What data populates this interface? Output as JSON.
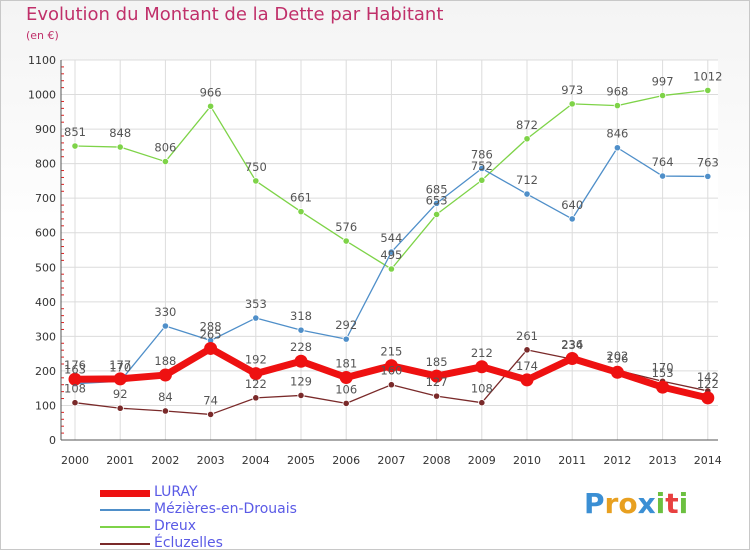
{
  "title": "Evolution du Montant de la Dette par Habitant",
  "unit_label": "(en €)",
  "logo": {
    "letters": [
      "P",
      "r",
      "o",
      "x",
      "i",
      "t",
      "i"
    ],
    "colors": [
      "#3b8fd4",
      "#e8a020",
      "#e8a020",
      "#3b8fd4",
      "#6cc040",
      "#e84040",
      "#6cc040"
    ]
  },
  "chart_data": {
    "type": "line",
    "title": "Evolution du Montant de la Dette par Habitant",
    "ylabel": "(en €)",
    "xlabel": "",
    "ylim": [
      0,
      1100
    ],
    "yticks": [
      0,
      100,
      200,
      300,
      400,
      500,
      600,
      700,
      800,
      900,
      1000,
      1100
    ],
    "categories": [
      "2000",
      "2001",
      "2002",
      "2003",
      "2004",
      "2005",
      "2006",
      "2007",
      "2008",
      "2009",
      "2010",
      "2011",
      "2012",
      "2013",
      "2014"
    ],
    "grid": true,
    "legend_position": "bottom-left",
    "series": [
      {
        "name": "LURAY",
        "color": "#ee1111",
        "values": [
          176,
          177,
          188,
          265,
          192,
          228,
          181,
          215,
          185,
          212,
          174,
          236,
          196,
          153,
          122
        ]
      },
      {
        "name": "Mézières-en-Drouais",
        "color": "#4f8fc9",
        "values": [
          163,
          170,
          330,
          288,
          353,
          318,
          292,
          544,
          685,
          786,
          712,
          640,
          846,
          764,
          763
        ]
      },
      {
        "name": "Dreux",
        "color": "#7ed348",
        "values": [
          851,
          848,
          806,
          966,
          750,
          661,
          576,
          495,
          653,
          752,
          872,
          973,
          968,
          997,
          1012
        ]
      },
      {
        "name": "Écluzelles",
        "color": "#7a2a2a",
        "values": [
          108,
          92,
          84,
          74,
          122,
          129,
          106,
          160,
          127,
          108,
          261,
          234,
          202,
          170,
          142
        ]
      }
    ]
  }
}
